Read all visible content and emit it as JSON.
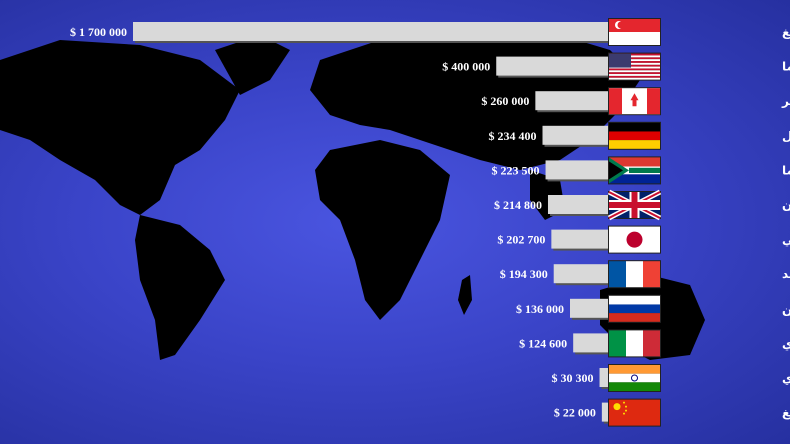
{
  "chart_data": {
    "type": "bar",
    "orientation": "horizontal",
    "currency_prefix": "$",
    "categories": [
      "لي هسين لونغ",
      "باراك أوباما",
      "ستيفن هاربر",
      "أنجيلا ميركل",
      "جاكوب زوما",
      "ديفيد كاميرون",
      "آبي",
      "فرانسوا هولاند",
      "فلاديمير بوتين",
      "ماتيو رينزي",
      "ناريندرا مودي",
      "شي جينغ بينغ"
    ],
    "labels": [
      "$ 1 700 000",
      "$ 400 000",
      "$ 260 000",
      "$ 234 400",
      "$ 223 500",
      "$ 214 800",
      "$ 202 700",
      "$ 194 300",
      "$ 136 000",
      "$ 124 600",
      "$ 30 300",
      "$ 22 000"
    ],
    "values": [
      1700000,
      400000,
      260000,
      234400,
      223500,
      214800,
      202700,
      194300,
      136000,
      124600,
      30300,
      22000
    ],
    "flags": [
      "singapore",
      "usa",
      "canada",
      "germany",
      "south-africa",
      "uk",
      "japan",
      "france",
      "russia",
      "italy",
      "india",
      "china"
    ],
    "bar_color": "#d9d9d9",
    "xlim": [
      0,
      1700000
    ],
    "grid": false,
    "legend": "none"
  }
}
